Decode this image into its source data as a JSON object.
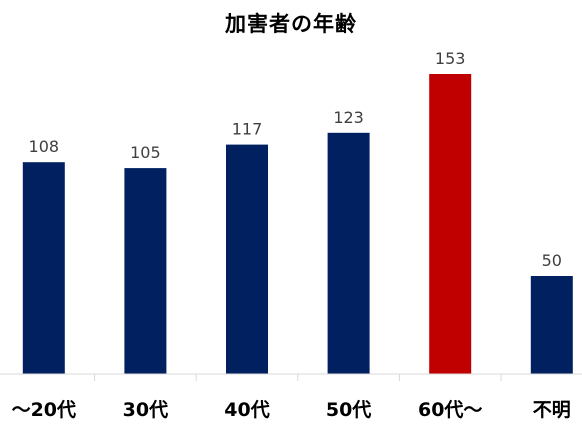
{
  "chart_data": {
    "type": "bar",
    "title": "加害者の年齢",
    "categories": [
      "～20代",
      "30代",
      "40代",
      "50代",
      "60代～",
      "不明"
    ],
    "values": [
      108,
      105,
      117,
      123,
      153,
      50
    ],
    "colors": [
      "#002060",
      "#002060",
      "#002060",
      "#002060",
      "#C00000",
      "#002060"
    ],
    "xlabel": "",
    "ylabel": "",
    "ylim": [
      0,
      160
    ],
    "grid": false,
    "legend": "none"
  }
}
